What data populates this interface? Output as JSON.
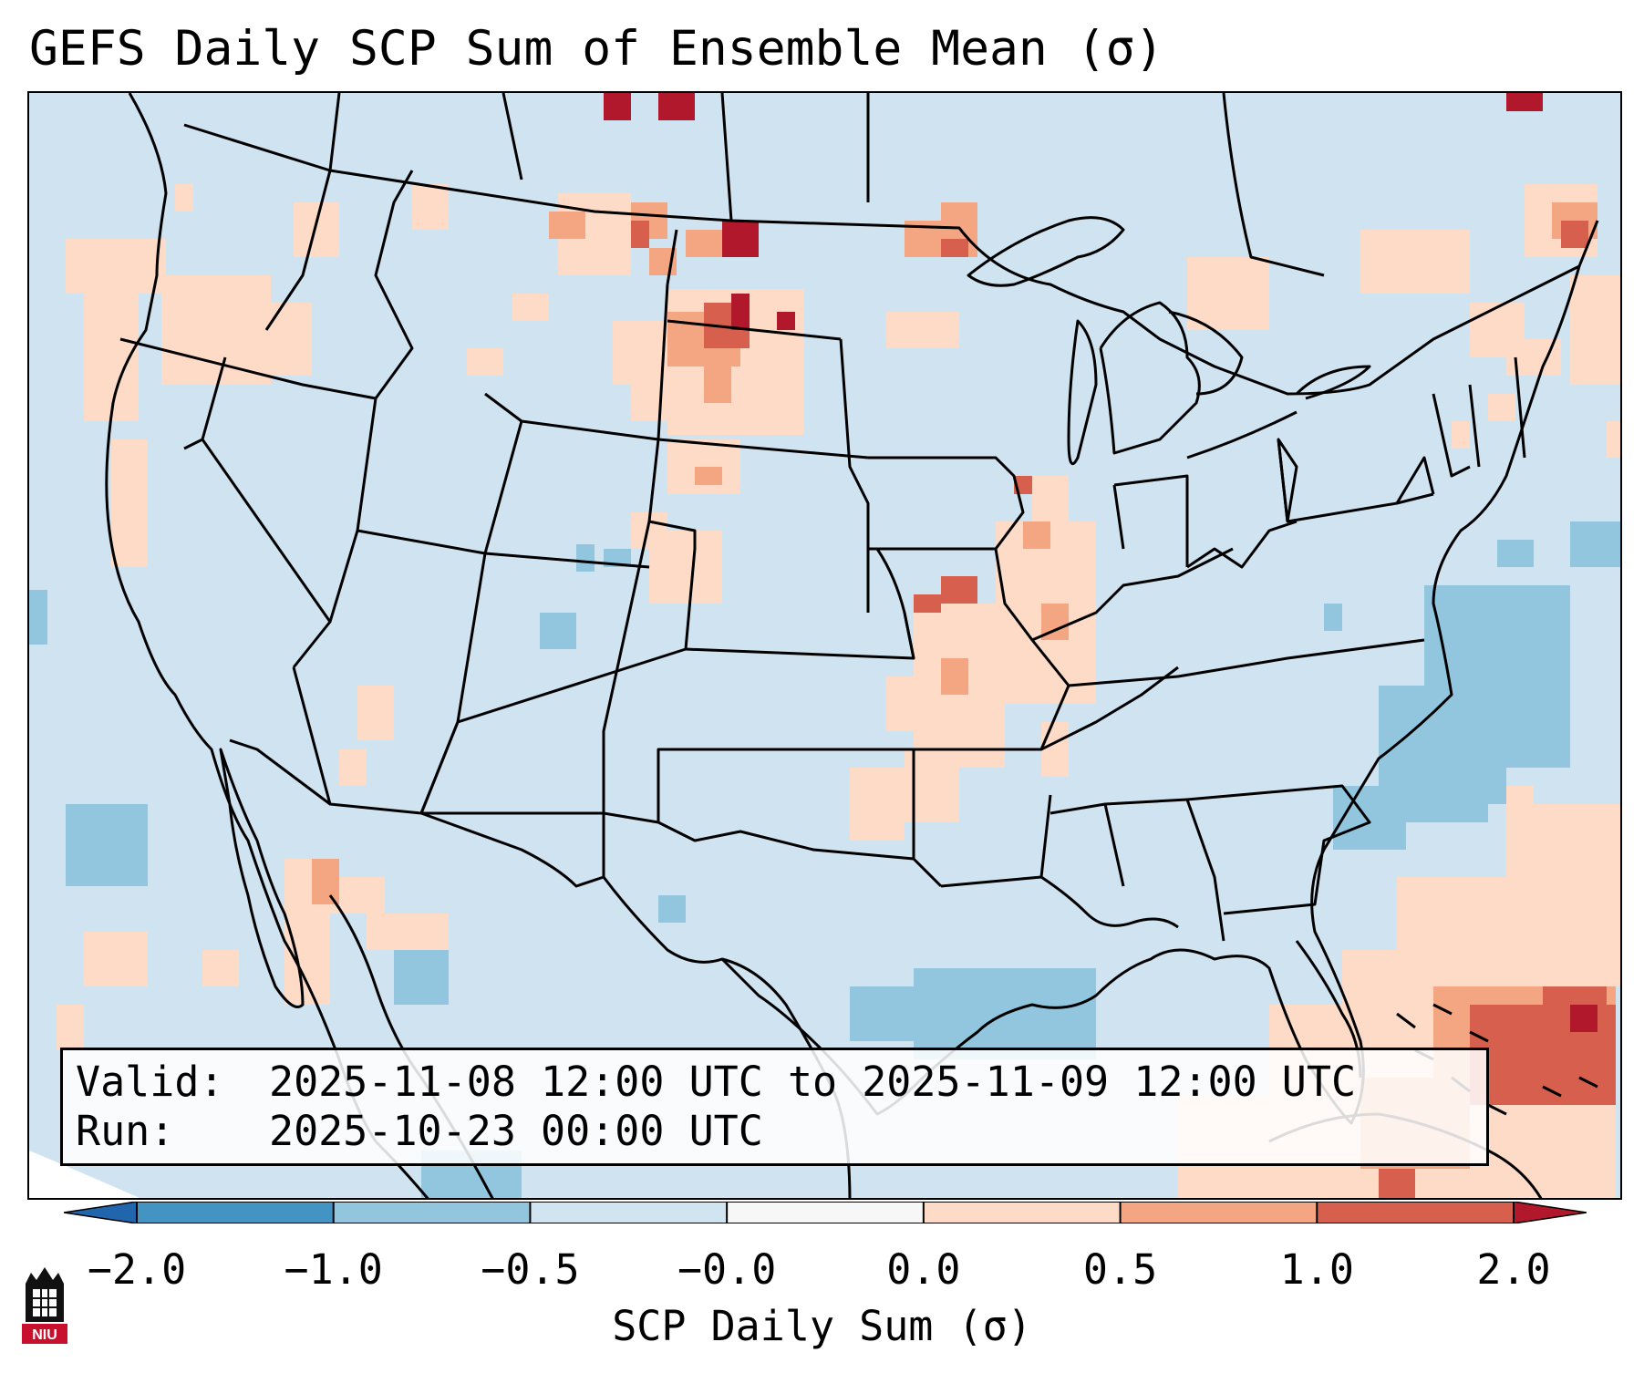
{
  "title": "GEFS Daily SCP Sum of Ensemble Mean (σ)",
  "info": {
    "valid_label": "Valid:",
    "valid_value": "2025-11-08 12:00 UTC to 2025-11-09 12:00 UTC",
    "run_label": "Run:",
    "run_value": "2025-10-23 00:00 UTC"
  },
  "colorbar": {
    "label": "SCP Daily Sum (σ)",
    "ticks": [
      "−2.0",
      "−1.0",
      "−0.5",
      "−0.0",
      "0.0",
      "0.5",
      "1.0",
      "2.0"
    ],
    "colors": [
      "#4393c3",
      "#92c5de",
      "#d1e5f0",
      "#f7f7f7",
      "#fddbc7",
      "#f4a582",
      "#d6604d"
    ],
    "extend_low_color": "#2166ac",
    "extend_high_color": "#b2182b"
  },
  "logo": {
    "text": "NIU",
    "color": "#c8102e"
  },
  "map": {
    "background_color": "#d0e3f0",
    "border_color": "#000000"
  }
}
